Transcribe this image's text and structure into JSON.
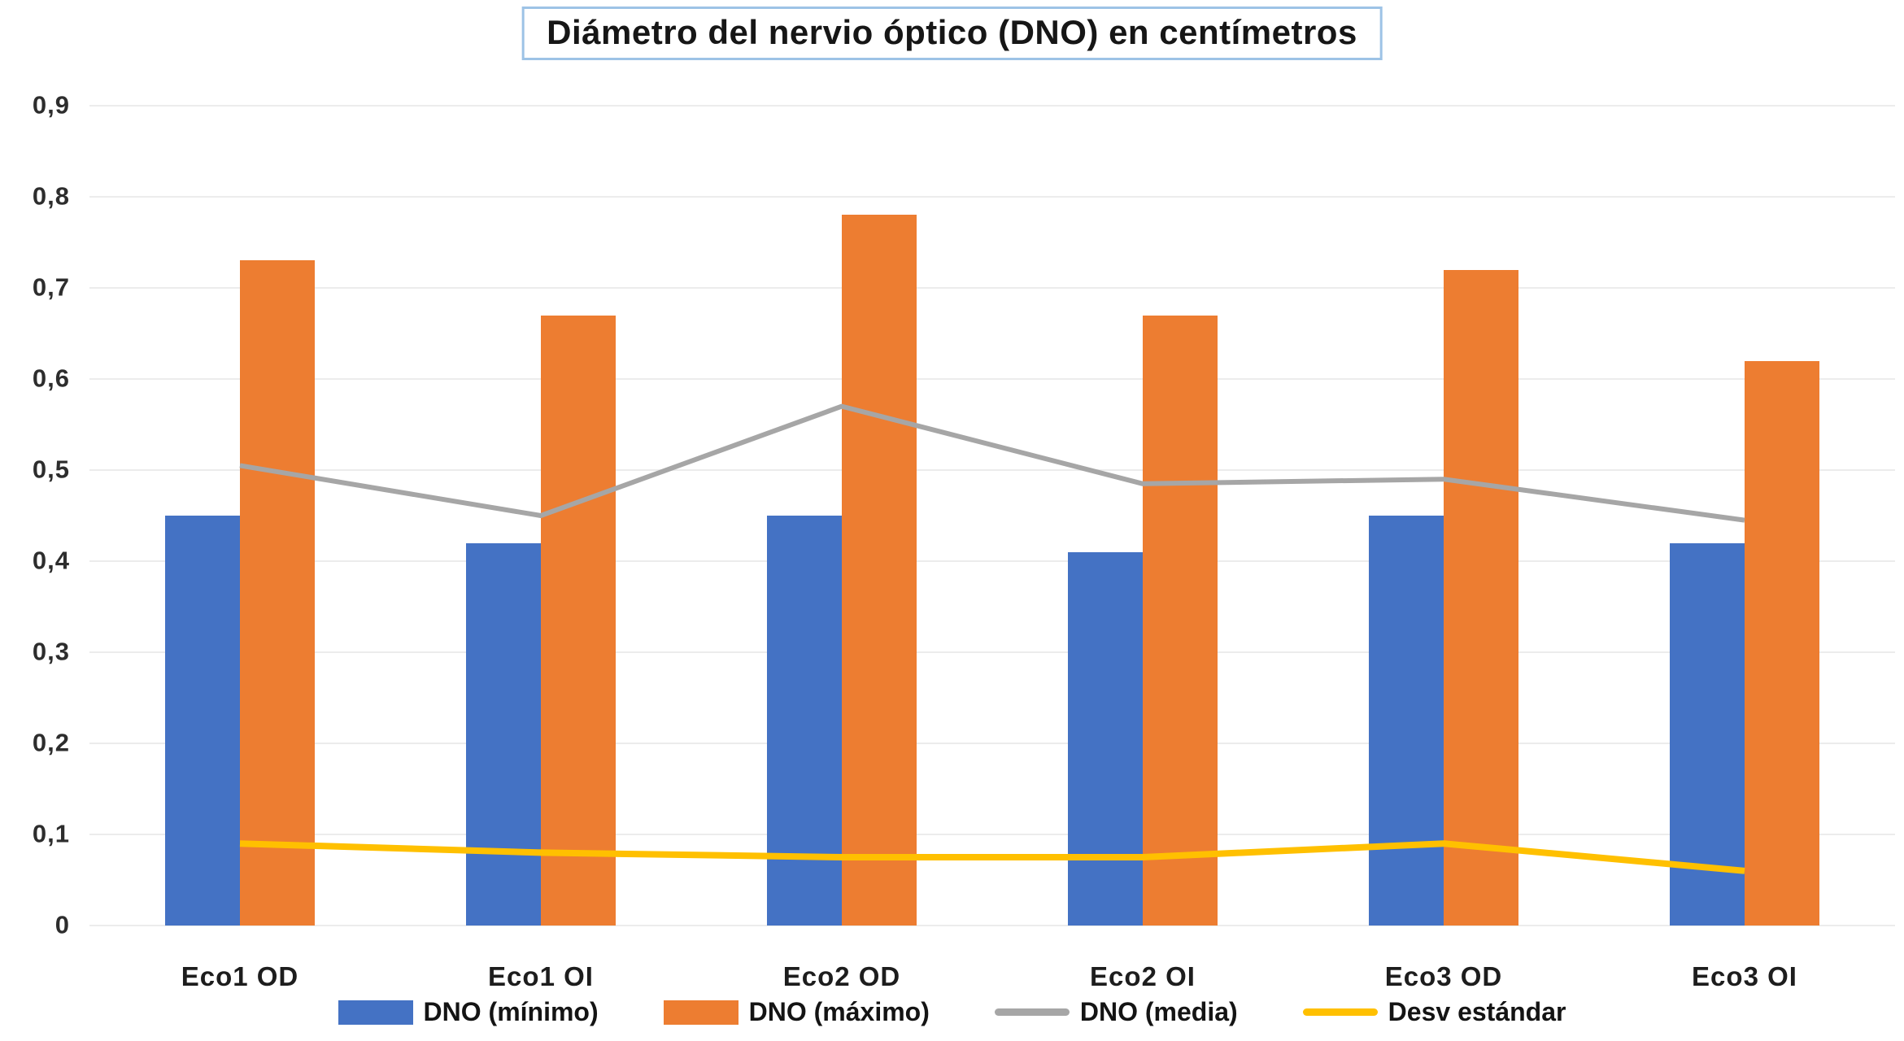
{
  "title": "Diámetro del nervio óptico (DNO) en centímetros",
  "colors": {
    "bar_min": "#4472C4",
    "bar_max": "#ED7D31",
    "line_media": "#A6A6A6",
    "line_desv": "#FFC000",
    "title_border": "#9DC3E6",
    "gridline": "#ECECEC",
    "background": "#FFFFFF"
  },
  "chart_data": {
    "type": "bar",
    "subtype": "grouped bars with overlaid lines",
    "title": "Diámetro del nervio óptico (DNO) en centímetros",
    "categories": [
      "Eco1 OD",
      "Eco1 OI",
      "Eco2 OD",
      "Eco2 OI",
      "Eco3 OD",
      "Eco3 OI"
    ],
    "series": [
      {
        "name": "DNO (mínimo)",
        "type": "bar",
        "color": "#4472C4",
        "values": [
          0.45,
          0.42,
          0.45,
          0.41,
          0.45,
          0.42
        ]
      },
      {
        "name": "DNO (máximo)",
        "type": "bar",
        "color": "#ED7D31",
        "values": [
          0.73,
          0.67,
          0.78,
          0.67,
          0.72,
          0.62
        ]
      },
      {
        "name": "DNO (media)",
        "type": "line",
        "color": "#A6A6A6",
        "values": [
          0.505,
          0.45,
          0.57,
          0.485,
          0.49,
          0.445
        ]
      },
      {
        "name": "Desv estándar",
        "type": "line",
        "color": "#FFC000",
        "values": [
          0.09,
          0.08,
          0.075,
          0.075,
          0.09,
          0.06
        ]
      }
    ],
    "xlabel": "",
    "ylabel": "",
    "ylim": [
      0,
      0.9
    ],
    "ytick_step": 0.1,
    "ytick_labels": [
      "0",
      "0,1",
      "0,2",
      "0,3",
      "0,4",
      "0,5",
      "0,6",
      "0,7",
      "0,8",
      "0,9"
    ],
    "grid": "horizontal",
    "legend_position": "bottom"
  }
}
